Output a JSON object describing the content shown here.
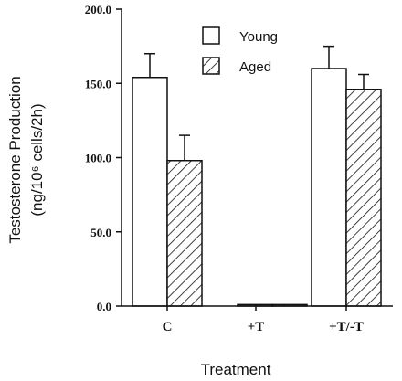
{
  "chart_data": {
    "type": "bar",
    "categories": [
      "C",
      "+T",
      "+T/-T"
    ],
    "series": [
      {
        "name": "Young",
        "values": [
          154,
          1,
          160
        ],
        "errors": [
          16,
          0,
          15
        ],
        "fill": "white"
      },
      {
        "name": "Aged",
        "values": [
          98,
          1,
          146
        ],
        "errors": [
          17,
          0,
          10
        ],
        "fill": "hatched"
      }
    ],
    "xlabel": "Treatment",
    "ylabel_line1": "Testosterone Production",
    "ylabel_line2": "(ng/10⁶ cells/2h)",
    "ylim": [
      0,
      200
    ],
    "yticks": [
      "0.0",
      "50.0",
      "100.0",
      "150.0",
      "200.0"
    ],
    "ytick_values": [
      0,
      50,
      100,
      150,
      200
    ],
    "legend_position": "top-center",
    "grid": false
  }
}
